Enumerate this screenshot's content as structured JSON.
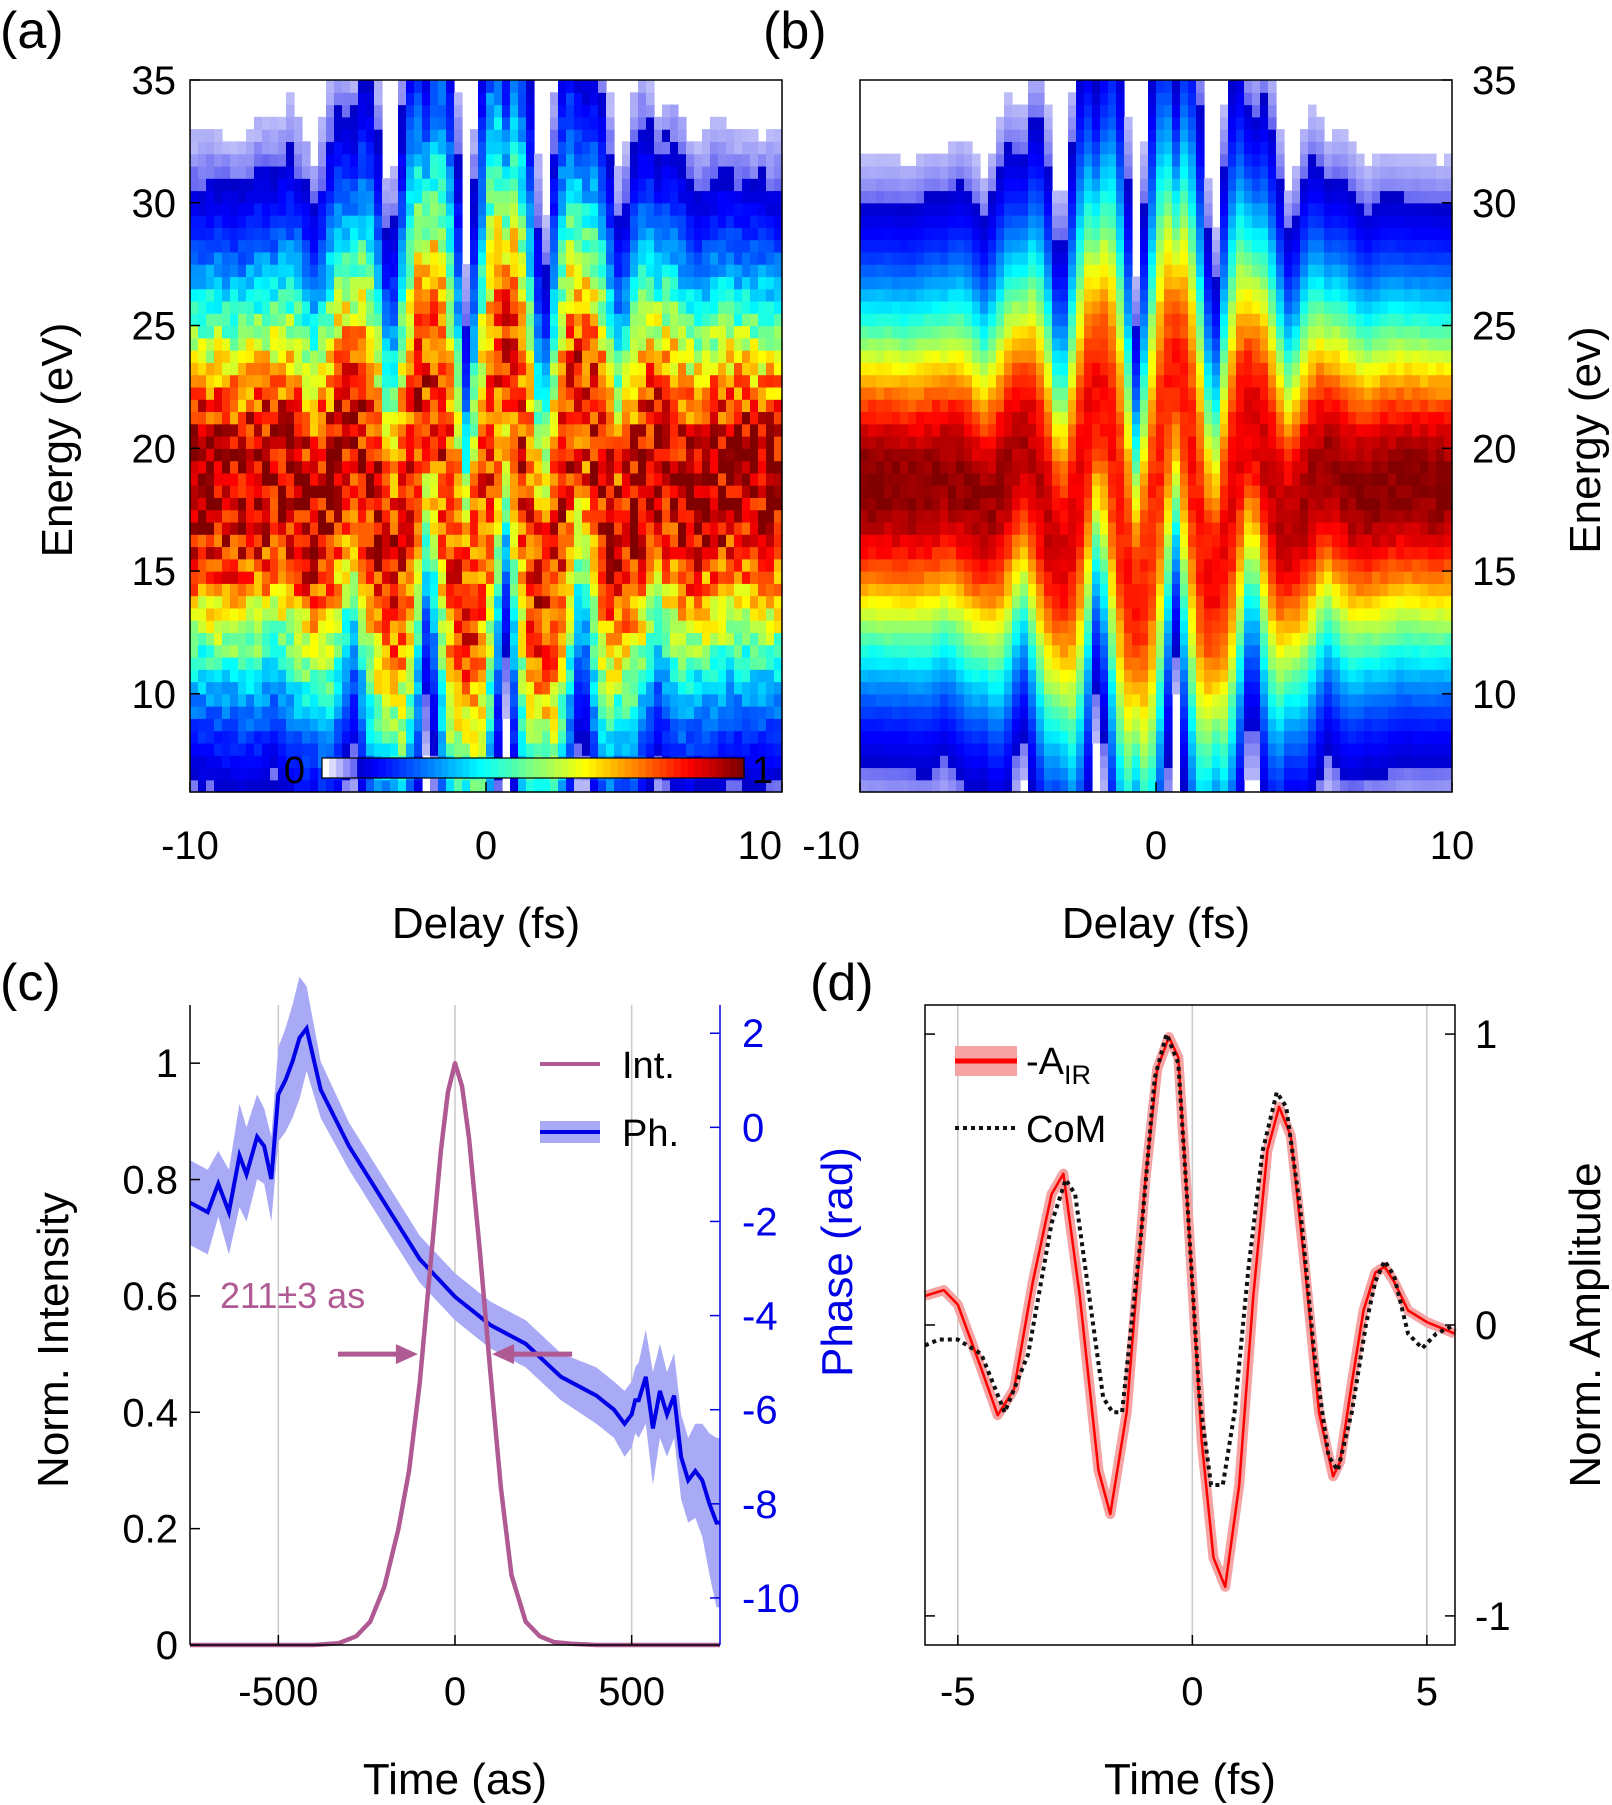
{
  "chart_data": [
    {
      "panel_label": "(a)",
      "type": "heatmap",
      "xlabel": "Delay (fs)",
      "ylabel": "Energy (eV)",
      "xlim": [
        -10,
        10
      ],
      "ylim": [
        6,
        35
      ],
      "xticks": [
        "-10",
        "0",
        "10"
      ],
      "yticks": [
        "10",
        "15",
        "20",
        "25",
        "30",
        "35"
      ],
      "colorbar": {
        "min_label": "0",
        "max_label": "1",
        "colormap": "jet"
      },
      "spectrogram": {
        "center_energy": 18.5,
        "base_width": 5.4,
        "oscillation_period_fs": 2.6,
        "envelope_width_fs": 3.2,
        "streak_amplitude_eV": 5.5,
        "noise": true
      }
    },
    {
      "panel_label": "(b)",
      "type": "heatmap",
      "xlabel": "Delay (fs)",
      "ylabel": "Energy (ev)",
      "xlim": [
        -10,
        10
      ],
      "ylim": [
        6,
        35
      ],
      "xticks": [
        "-10",
        "0",
        "10"
      ],
      "yticks": [
        "10",
        "15",
        "20",
        "25",
        "30",
        "35"
      ],
      "spectrogram": {
        "center_energy": 18.5,
        "base_width": 5.0,
        "oscillation_period_fs": 2.6,
        "envelope_width_fs": 3.0,
        "streak_amplitude_eV": 5.0,
        "noise": false
      }
    },
    {
      "panel_label": "(c)",
      "type": "line",
      "xlabel": "Time (as)",
      "ylabel": "Norm. Intensity",
      "y2label": "Phase (rad)",
      "xlim": [
        -750,
        750
      ],
      "ylim": [
        0,
        1.1
      ],
      "y2lim": [
        -11.0,
        2.6
      ],
      "xticks": [
        "-500",
        "0",
        "500"
      ],
      "yticks": [
        "0",
        "0.2",
        "0.4",
        "0.6",
        "0.8",
        "1"
      ],
      "y2ticks": [
        "2",
        "0",
        "-2",
        "-4",
        "-6",
        "-8",
        "-10"
      ],
      "series": [
        {
          "name": "Int.",
          "color": "#b05a93",
          "x": [
            -750,
            -400,
            -330,
            -280,
            -240,
            -200,
            -160,
            -130,
            -100,
            -70,
            -40,
            -20,
            0,
            20,
            40,
            70,
            100,
            130,
            160,
            200,
            240,
            280,
            330,
            400,
            750
          ],
          "y": [
            0,
            0,
            0.003,
            0.015,
            0.04,
            0.1,
            0.2,
            0.3,
            0.45,
            0.65,
            0.85,
            0.95,
            1.0,
            0.96,
            0.87,
            0.68,
            0.47,
            0.27,
            0.12,
            0.04,
            0.015,
            0.005,
            0.002,
            0,
            0
          ]
        },
        {
          "name": "Ph.",
          "color": "#0000e6",
          "band_color": "#a9aaf5",
          "x": [
            -750,
            -700,
            -670,
            -640,
            -610,
            -590,
            -560,
            -540,
            -520,
            -500,
            -480,
            -460,
            -440,
            -420,
            -380,
            -300,
            -200,
            -100,
            0,
            100,
            200,
            300,
            400,
            450,
            480,
            500,
            510,
            520,
            540,
            560,
            580,
            600,
            620,
            640,
            660,
            680,
            700,
            720,
            740,
            750
          ],
          "y": [
            -1.6,
            -1.8,
            -1.2,
            -1.8,
            -0.6,
            -1.0,
            -0.2,
            -0.4,
            -1.1,
            0.7,
            1.0,
            1.4,
            1.9,
            2.1,
            0.8,
            -0.4,
            -1.6,
            -2.8,
            -3.6,
            -4.2,
            -4.6,
            -5.3,
            -5.7,
            -6.0,
            -6.3,
            -6.1,
            -5.8,
            -5.8,
            -5.3,
            -6.4,
            -5.6,
            -6.1,
            -5.7,
            -7.0,
            -7.5,
            -7.3,
            -7.5,
            -8.0,
            -8.4,
            -8.4
          ],
          "band": [
            0.9,
            0.9,
            0.7,
            0.9,
            1.1,
            1.0,
            0.9,
            0.8,
            0.9,
            1.0,
            1.1,
            1.2,
            1.3,
            0.9,
            0.6,
            0.5,
            0.5,
            0.5,
            0.5,
            0.5,
            0.5,
            0.5,
            0.6,
            0.6,
            0.7,
            0.7,
            0.7,
            0.8,
            1.0,
            1.2,
            1.0,
            0.9,
            0.9,
            0.9,
            0.9,
            1.0,
            1.2,
            1.5,
            1.8,
            1.8
          ]
        }
      ],
      "annotations": {
        "fwhm_text": "211±3 as",
        "fwhm_left": -105,
        "fwhm_right": 105,
        "arrow_y": 0.5
      }
    },
    {
      "panel_label": "(d)",
      "type": "line",
      "xlabel": "Time (fs)",
      "ylabel": "Norm. Amplitude",
      "xlim": [
        -5.7,
        5.6
      ],
      "ylim": [
        -1.1,
        1.1
      ],
      "xticks": [
        "-5",
        "0",
        "5"
      ],
      "yticks": [
        "1",
        "0",
        "-1"
      ],
      "series": [
        {
          "name": "-A_IR",
          "legend_main": "-A",
          "legend_sub": "IR",
          "color": "#ff0000",
          "band_color": "#f5a3a3",
          "x": [
            -5.7,
            -5.3,
            -5.0,
            -4.5,
            -4.15,
            -3.8,
            -3.4,
            -3.0,
            -2.75,
            -2.4,
            -2.0,
            -1.75,
            -1.4,
            -1.0,
            -0.75,
            -0.5,
            -0.3,
            -0.1,
            0.2,
            0.45,
            0.7,
            1.0,
            1.3,
            1.6,
            1.85,
            2.1,
            2.4,
            2.7,
            3.0,
            3.15,
            3.4,
            3.65,
            3.9,
            4.1,
            4.3,
            4.6,
            5.0,
            5.6
          ],
          "y": [
            0.1,
            0.12,
            0.07,
            -0.15,
            -0.31,
            -0.22,
            0.15,
            0.45,
            0.52,
            0.1,
            -0.5,
            -0.65,
            -0.3,
            0.5,
            0.88,
            0.99,
            0.92,
            0.4,
            -0.4,
            -0.8,
            -0.9,
            -0.55,
            0.1,
            0.6,
            0.75,
            0.65,
            0.2,
            -0.3,
            -0.52,
            -0.47,
            -0.2,
            0.05,
            0.18,
            0.2,
            0.15,
            0.05,
            0.01,
            -0.03
          ]
        },
        {
          "name": "CoM",
          "color": "#111111",
          "x": [
            -5.7,
            -5.4,
            -5.0,
            -4.5,
            -4.0,
            -3.5,
            -3.0,
            -2.7,
            -2.5,
            -2.2,
            -1.9,
            -1.7,
            -1.5,
            -1.1,
            -0.8,
            -0.55,
            -0.3,
            -0.1,
            0.15,
            0.4,
            0.65,
            0.9,
            1.2,
            1.5,
            1.8,
            2.0,
            2.3,
            2.6,
            2.9,
            3.1,
            3.4,
            3.7,
            3.9,
            4.1,
            4.3,
            4.6,
            4.9,
            5.2,
            5.6
          ],
          "y": [
            -0.07,
            -0.05,
            -0.05,
            -0.1,
            -0.3,
            -0.1,
            0.35,
            0.5,
            0.45,
            0.1,
            -0.25,
            -0.3,
            -0.3,
            0.3,
            0.85,
            1.0,
            0.9,
            0.4,
            -0.25,
            -0.55,
            -0.55,
            -0.3,
            0.2,
            0.6,
            0.8,
            0.75,
            0.4,
            -0.1,
            -0.45,
            -0.5,
            -0.3,
            0.0,
            0.15,
            0.22,
            0.17,
            -0.03,
            -0.08,
            -0.03,
            0.0
          ]
        }
      ]
    }
  ]
}
